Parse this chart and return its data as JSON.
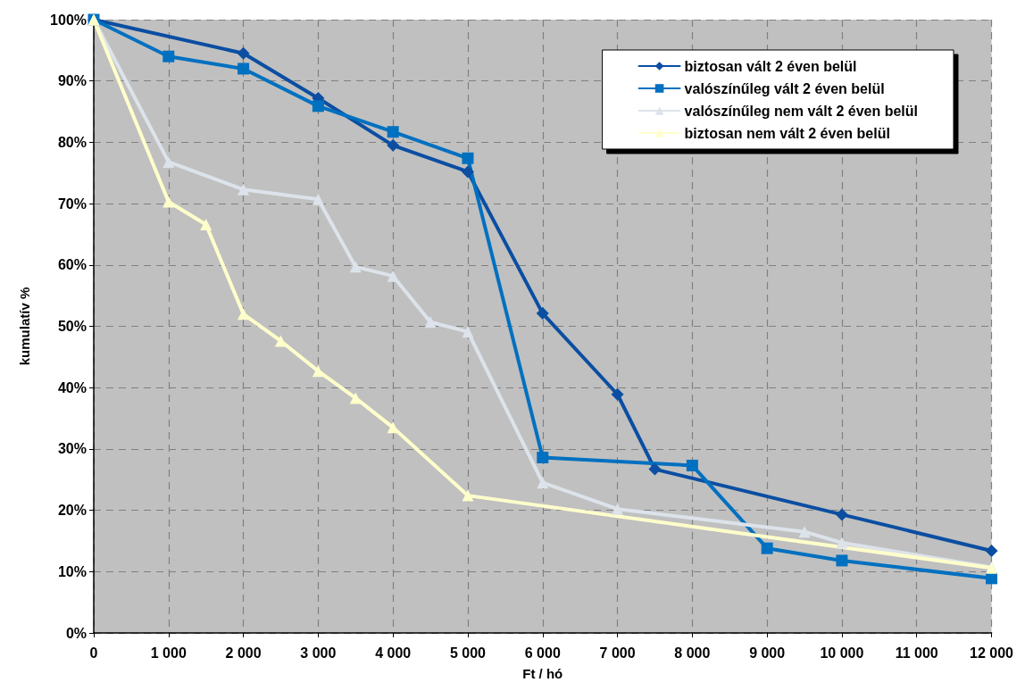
{
  "chart_data": {
    "type": "line",
    "xlabel": "Ft / hó",
    "ylabel": "kumulatív %",
    "xlim": [
      0,
      12000
    ],
    "ylim": [
      0,
      100
    ],
    "xticks": [
      0,
      {
        "value": 1000,
        "label": "1 000"
      },
      {
        "value": 2000,
        "label": "2 000"
      },
      {
        "value": 3000,
        "label": "3 000"
      },
      {
        "value": 4000,
        "label": "4 000"
      },
      {
        "value": 5000,
        "label": "5 000"
      },
      {
        "value": 6000,
        "label": "6 000"
      },
      {
        "value": 7000,
        "label": "7 000"
      },
      {
        "value": 8000,
        "label": "8 000"
      },
      {
        "value": 9000,
        "label": "9 000"
      },
      {
        "value": 10000,
        "label": "10 000"
      },
      {
        "value": 11000,
        "label": "11 000"
      },
      {
        "value": 12000,
        "label": "12 000"
      }
    ],
    "yticks": [
      {
        "value": 0,
        "label": "0%"
      },
      {
        "value": 10,
        "label": "10%"
      },
      {
        "value": 20,
        "label": "20%"
      },
      {
        "value": 30,
        "label": "30%"
      },
      {
        "value": 40,
        "label": "40%"
      },
      {
        "value": 50,
        "label": "50%"
      },
      {
        "value": 60,
        "label": "60%"
      },
      {
        "value": 70,
        "label": "70%"
      },
      {
        "value": 80,
        "label": "80%"
      },
      {
        "value": 90,
        "label": "90%"
      },
      {
        "value": 100,
        "label": "100%"
      }
    ],
    "grid": true,
    "legend": "top right",
    "line_style": "solid",
    "series": [
      {
        "name": "biztosan vált 2 éven belül",
        "color": "#0b4ea2",
        "marker": "diamond",
        "x": [
          0,
          2000,
          3000,
          4000,
          5000,
          6000,
          7000,
          7500,
          10000,
          12000
        ],
        "values": [
          100,
          94.5,
          87.2,
          79.5,
          75.2,
          52.1,
          38.9,
          26.7,
          19.3,
          13.4
        ]
      },
      {
        "name": "valószínűleg vált 2 éven belül",
        "color": "#0070c0",
        "marker": "square",
        "x": [
          0,
          1000,
          2000,
          3000,
          4000,
          5000,
          6000,
          8000,
          9000,
          10000,
          12000
        ],
        "values": [
          100,
          94.0,
          92.0,
          85.9,
          81.7,
          77.4,
          28.6,
          27.3,
          13.8,
          11.8,
          8.9
        ]
      },
      {
        "name": "valószínűleg nem vált 2 éven belül",
        "color": "#dde3ea",
        "marker": "triangle",
        "x": [
          0,
          1000,
          2000,
          3000,
          3500,
          4000,
          4500,
          5000,
          6000,
          7000,
          9500,
          10000,
          12000
        ],
        "values": [
          100,
          76.8,
          72.3,
          70.7,
          59.7,
          58.2,
          50.7,
          49.1,
          24.5,
          20.2,
          16.5,
          14.7,
          10.7
        ]
      },
      {
        "name": "biztosan nem vált 2 éven belül",
        "color": "#ffffcc",
        "marker": "triangle",
        "x": [
          0,
          1000,
          1500,
          2000,
          2500,
          3000,
          3500,
          4000,
          5000,
          12000
        ],
        "values": [
          100,
          70.3,
          66.6,
          52.0,
          47.6,
          42.7,
          38.3,
          33.5,
          22.4,
          10.6
        ]
      }
    ]
  }
}
